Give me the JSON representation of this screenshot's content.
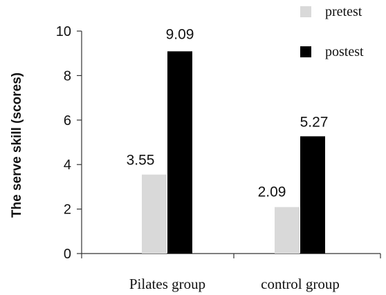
{
  "chart_data": {
    "type": "bar",
    "categories": [
      "Pilates group",
      "control group"
    ],
    "series": [
      {
        "name": "pretest",
        "values": [
          3.55,
          2.09
        ],
        "color": "#d9d9d9"
      },
      {
        "name": "postest",
        "values": [
          9.09,
          5.27
        ],
        "color": "#000000"
      }
    ],
    "data_labels": [
      [
        "3.55",
        "2.09"
      ],
      [
        "9.09",
        "5.27"
      ]
    ],
    "ylabel": "The serve skill  (scores)",
    "xlabel": "",
    "ylim": [
      0,
      10
    ],
    "yticks": [
      0,
      2,
      4,
      6,
      8,
      10
    ],
    "grid": false,
    "legend_position": "top-right"
  }
}
